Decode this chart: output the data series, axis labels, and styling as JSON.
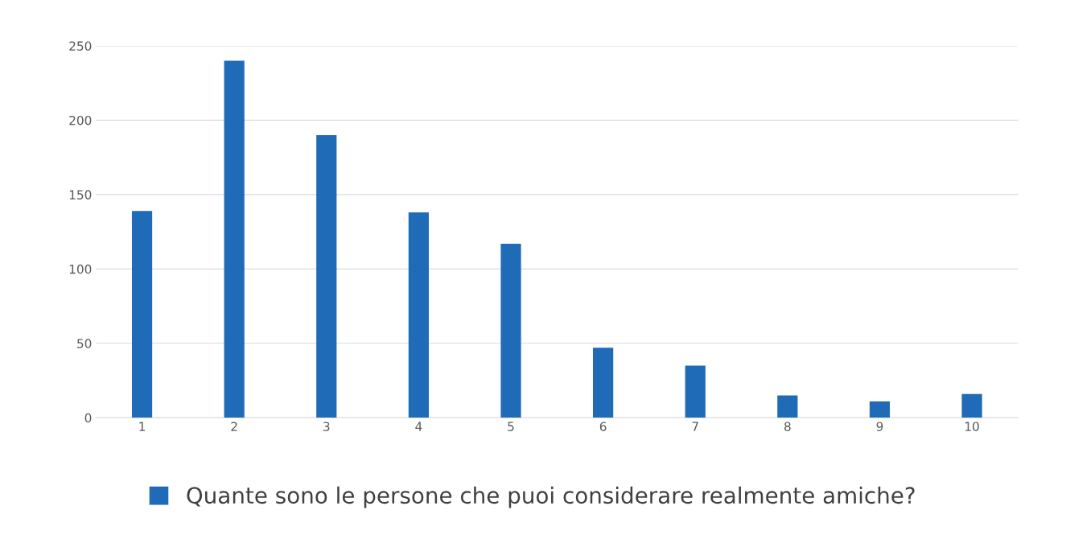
{
  "chart_data": {
    "type": "bar",
    "categories": [
      "1",
      "2",
      "3",
      "4",
      "5",
      "6",
      "7",
      "8",
      "9",
      "10"
    ],
    "series": [
      {
        "name": "Quante sono le persone che puoi considerare realmente amiche?",
        "color": "#1f6bb8",
        "values": [
          139,
          240,
          190,
          138,
          117,
          47,
          35,
          15,
          11,
          16
        ]
      }
    ],
    "ylim": [
      0,
      250
    ],
    "yticks": [
      0,
      50,
      100,
      150,
      200,
      250
    ],
    "grid": "y",
    "legend": "bottom"
  }
}
